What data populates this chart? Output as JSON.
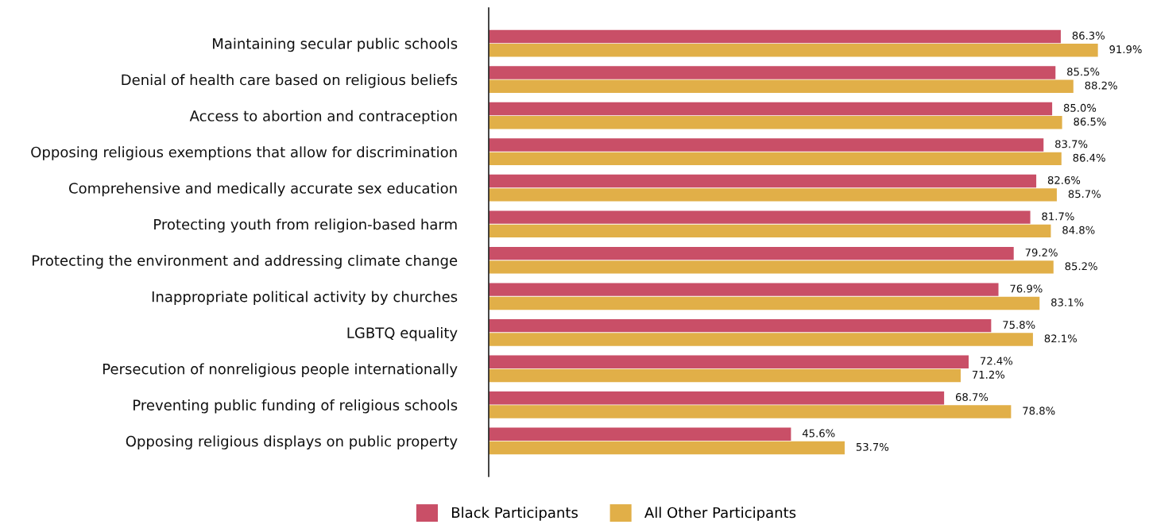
{
  "chart_data": {
    "type": "bar",
    "orientation": "horizontal",
    "categories": [
      "Maintaining secular public schools",
      "Denial of health care based on religious beliefs",
      "Access to abortion and contraception",
      "Opposing religious exemptions that allow for discrimination",
      "Comprehensive and medically accurate sex education",
      "Protecting youth from religion-based harm",
      "Protecting the environment and addressing climate change",
      "Inappropriate political activity by churches",
      "LGBTQ equality",
      "Persecution of nonreligious people internationally",
      "Preventing public funding of religious schools",
      "Opposing religious displays on public property"
    ],
    "series": [
      {
        "name": "Black Participants",
        "color": "#c94f67",
        "values": [
          86.3,
          85.5,
          85.0,
          83.7,
          82.6,
          81.7,
          79.2,
          76.9,
          75.8,
          72.4,
          68.7,
          45.6
        ],
        "value_labels": [
          "86.3%",
          "85.5%",
          "85.0%",
          "83.7%",
          "82.6%",
          "81.7%",
          "79.2%",
          "76.9%",
          "75.8%",
          "72.4%",
          "68.7%",
          "45.6%"
        ]
      },
      {
        "name": "All Other Participants",
        "color": "#e1af48",
        "values": [
          91.9,
          88.2,
          86.5,
          86.4,
          85.7,
          84.8,
          85.2,
          83.1,
          82.1,
          71.2,
          78.8,
          53.7
        ],
        "value_labels": [
          "91.9%",
          "88.2%",
          "86.5%",
          "86.4%",
          "85.7%",
          "84.8%",
          "85.2%",
          "83.1%",
          "82.1%",
          "71.2%",
          "78.8%",
          "53.7%"
        ]
      }
    ],
    "legend": "bottom",
    "tick_labels": "y"
  }
}
